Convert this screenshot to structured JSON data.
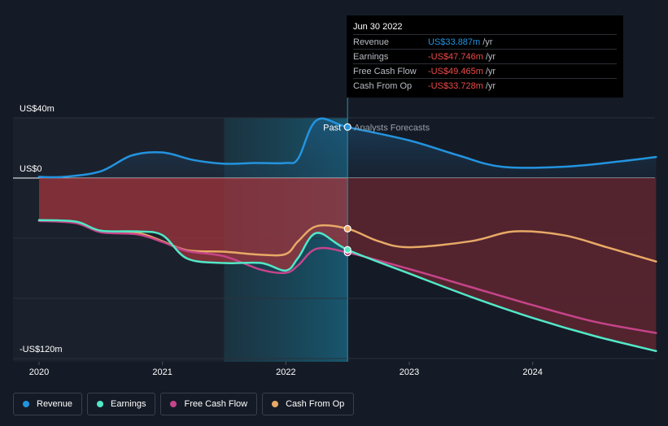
{
  "chart_data": {
    "type": "line",
    "title": "",
    "xlabel": "",
    "ylabel": "",
    "ylim": [
      -120,
      40
    ],
    "y_ticks": [
      {
        "value": 40,
        "label": "US$40m"
      },
      {
        "value": 0,
        "label": "US$0"
      },
      {
        "value": -120,
        "label": "-US$120m"
      }
    ],
    "x_ticks": [
      {
        "value": 2020.0,
        "label": "2020"
      },
      {
        "value": 2021.0,
        "label": "2021"
      },
      {
        "value": 2022.0,
        "label": "2022"
      },
      {
        "value": 2023.0,
        "label": "2023"
      },
      {
        "value": 2024.0,
        "label": "2024"
      }
    ],
    "xlim": [
      2019.8,
      2025.0
    ],
    "divider_x": 2022.5,
    "highlight_start_x": 2021.5,
    "past_label": "Past",
    "forecast_label": "Analysts Forecasts",
    "series": [
      {
        "name": "Revenue",
        "color": "#2394df",
        "fill": "positive",
        "points": [
          [
            2020.0,
            0.8
          ],
          [
            2020.2,
            0.8
          ],
          [
            2020.5,
            4.5
          ],
          [
            2020.75,
            15
          ],
          [
            2021.0,
            17
          ],
          [
            2021.25,
            12
          ],
          [
            2021.5,
            9.5
          ],
          [
            2021.75,
            10
          ],
          [
            2022.0,
            10
          ],
          [
            2022.1,
            13
          ],
          [
            2022.25,
            38.5
          ],
          [
            2022.5,
            33.9
          ],
          [
            2023.0,
            25
          ],
          [
            2023.4,
            15
          ],
          [
            2023.75,
            7.5
          ],
          [
            2024.25,
            7.5
          ],
          [
            2024.7,
            11
          ],
          [
            2025.0,
            14
          ]
        ]
      },
      {
        "name": "Earnings",
        "color": "#52e8c8",
        "points": [
          [
            2020.0,
            -28
          ],
          [
            2020.3,
            -29
          ],
          [
            2020.5,
            -35
          ],
          [
            2020.8,
            -35.5
          ],
          [
            2021.0,
            -38
          ],
          [
            2021.2,
            -53.5
          ],
          [
            2021.5,
            -56.5
          ],
          [
            2021.8,
            -56.5
          ],
          [
            2022.0,
            -61.5
          ],
          [
            2022.1,
            -53
          ],
          [
            2022.25,
            -36.5
          ],
          [
            2022.5,
            -47.7
          ],
          [
            2023.0,
            -63.5
          ],
          [
            2023.5,
            -79
          ],
          [
            2024.0,
            -93
          ],
          [
            2024.5,
            -105
          ],
          [
            2025.0,
            -115
          ]
        ]
      },
      {
        "name": "Free Cash Flow",
        "color": "#c6448a",
        "points": [
          [
            2020.0,
            -28.5
          ],
          [
            2020.3,
            -30
          ],
          [
            2020.5,
            -36
          ],
          [
            2020.8,
            -37.5
          ],
          [
            2021.0,
            -42.5
          ],
          [
            2021.2,
            -48.5
          ],
          [
            2021.5,
            -52
          ],
          [
            2021.8,
            -61
          ],
          [
            2022.0,
            -63
          ],
          [
            2022.1,
            -58
          ],
          [
            2022.25,
            -47
          ],
          [
            2022.5,
            -49.5
          ],
          [
            2023.0,
            -60.5
          ],
          [
            2023.5,
            -72.5
          ],
          [
            2024.0,
            -84.5
          ],
          [
            2024.5,
            -95.5
          ],
          [
            2025.0,
            -103
          ]
        ]
      },
      {
        "name": "Cash From Op",
        "color": "#e8a966",
        "points": [
          [
            2020.0,
            -28
          ],
          [
            2020.3,
            -29.5
          ],
          [
            2020.5,
            -35.5
          ],
          [
            2020.8,
            -36.5
          ],
          [
            2021.0,
            -42
          ],
          [
            2021.2,
            -48
          ],
          [
            2021.5,
            -49
          ],
          [
            2021.8,
            -51
          ],
          [
            2022.0,
            -50.5
          ],
          [
            2022.1,
            -42
          ],
          [
            2022.25,
            -32
          ],
          [
            2022.5,
            -33.7
          ],
          [
            2022.75,
            -42
          ],
          [
            2023.0,
            -46
          ],
          [
            2023.5,
            -42
          ],
          [
            2023.85,
            -35.5
          ],
          [
            2024.25,
            -38
          ],
          [
            2024.6,
            -46
          ],
          [
            2025.0,
            -55.5
          ]
        ]
      }
    ]
  },
  "tooltip": {
    "date": "Jun 30 2022",
    "rows": [
      {
        "name": "Revenue",
        "value": "US$33.887m",
        "unit": "/yr",
        "color": "#2394df"
      },
      {
        "name": "Earnings",
        "value": "-US$47.746m",
        "unit": "/yr",
        "color": "#ee4a4a"
      },
      {
        "name": "Free Cash Flow",
        "value": "-US$49.465m",
        "unit": "/yr",
        "color": "#ee4a4a"
      },
      {
        "name": "Cash From Op",
        "value": "-US$33.728m",
        "unit": "/yr",
        "color": "#ee4a4a"
      }
    ]
  },
  "legend": [
    {
      "label": "Revenue",
      "color": "#2394df"
    },
    {
      "label": "Earnings",
      "color": "#52e8c8"
    },
    {
      "label": "Free Cash Flow",
      "color": "#c6448a"
    },
    {
      "label": "Cash From Op",
      "color": "#e8a966"
    }
  ]
}
